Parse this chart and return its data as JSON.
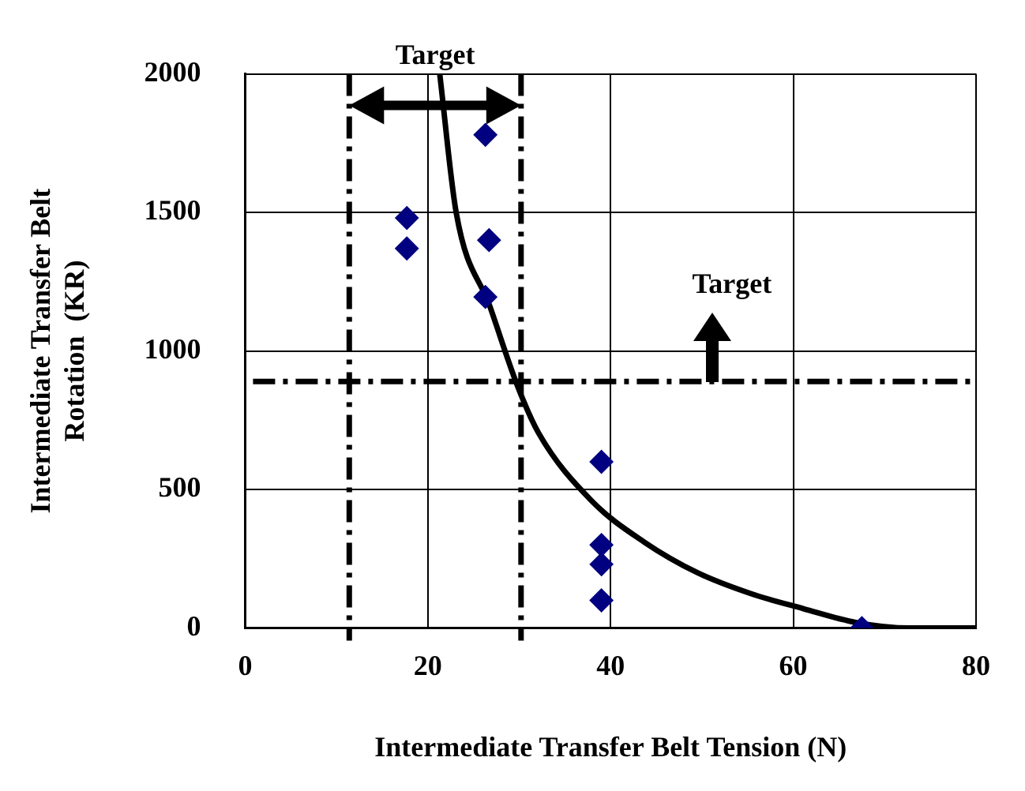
{
  "chart_data": {
    "type": "scatter",
    "xlabel": "Intermediate Transfer Belt Tension (N)",
    "ylabel": "Intermediate Transfer Belt\nRotation  (KR)",
    "xlim": [
      0,
      80
    ],
    "xticks": [
      0,
      20,
      40,
      60,
      80
    ],
    "ylim": [
      0,
      2000
    ],
    "yticks": [
      0,
      500,
      1000,
      1500,
      2000
    ],
    "grid": true,
    "marker": "diamond",
    "series": [
      {
        "type": "scatter",
        "color": "#000080",
        "x": [
          26.3,
          17.7,
          17.7,
          26.7,
          26.3,
          39,
          39,
          39,
          39,
          67.5
        ],
        "values": [
          1780,
          1480,
          1370,
          1400,
          1195,
          600,
          300,
          230,
          100,
          0
        ]
      },
      {
        "type": "line",
        "color": "#000000",
        "marker": "none",
        "x": [
          21.3,
          23.1,
          26.8,
          29.8,
          32.1,
          37.9,
          43.7,
          49.5,
          55.3,
          61.1,
          66.9,
          72.7,
          80
        ],
        "values": [
          2000,
          1500,
          1160,
          875,
          705,
          460,
          310,
          200,
          125,
          70,
          20,
          0,
          0
        ]
      }
    ],
    "ref_lines": [
      {
        "axis": "x",
        "value": 11.4,
        "label": null,
        "line_style": "dashed",
        "color": "#000000"
      },
      {
        "axis": "x",
        "value": 30.2,
        "label": null,
        "line_style": "dashed",
        "color": "#000000"
      },
      {
        "axis": "y",
        "value": 890,
        "label": "Target",
        "line_style": "dashed",
        "color": "#000000"
      }
    ],
    "annotations": [
      {
        "text": "Target",
        "x": 20.8,
        "y": 2000
      }
    ]
  }
}
